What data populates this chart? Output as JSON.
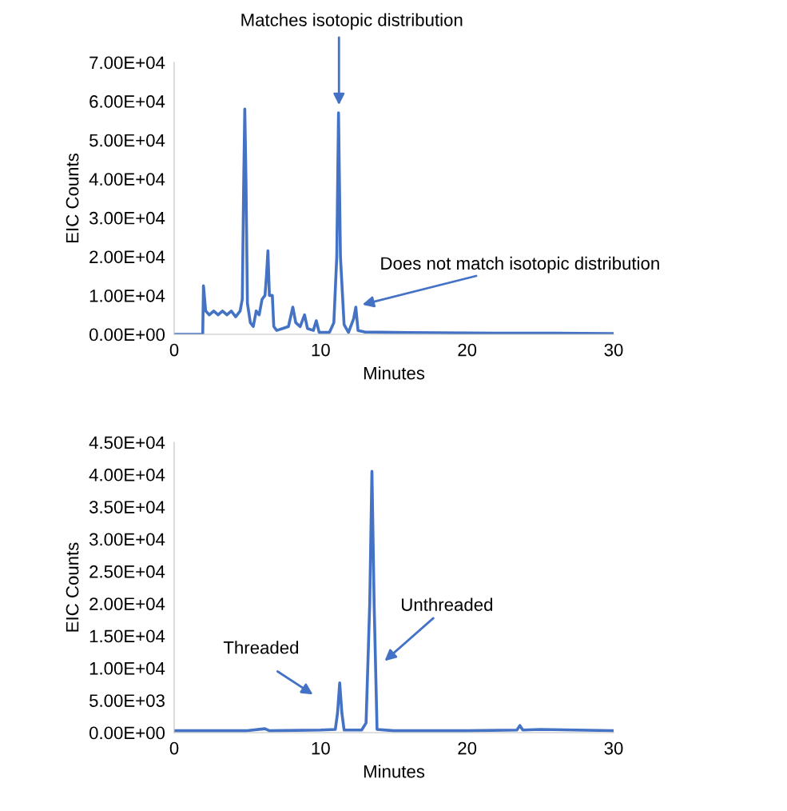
{
  "chart_data": [
    {
      "type": "line",
      "xlabel": "Minutes",
      "ylabel": "EIC Counts",
      "xlim": [
        0,
        30
      ],
      "xticks": [
        0,
        10,
        20,
        30
      ],
      "ylim": [
        0,
        70000
      ],
      "yticks": [
        {
          "value": 0,
          "label": "0.00E+00"
        },
        {
          "value": 10000,
          "label": "1.00E+04"
        },
        {
          "value": 20000,
          "label": "2.00E+04"
        },
        {
          "value": 30000,
          "label": "3.00E+04"
        },
        {
          "value": 40000,
          "label": "4.00E+04"
        },
        {
          "value": 50000,
          "label": "5.00E+04"
        },
        {
          "value": 60000,
          "label": "6.00E+04"
        },
        {
          "value": 70000,
          "label": "7.00E+04"
        }
      ],
      "grid": false,
      "legend": false,
      "series": [
        {
          "color": "#4472c4",
          "x": [
            0,
            1.95,
            2.0,
            2.15,
            2.4,
            2.7,
            3.0,
            3.3,
            3.6,
            3.9,
            4.2,
            4.5,
            4.65,
            4.75,
            4.82,
            4.9,
            5.0,
            5.2,
            5.4,
            5.6,
            5.8,
            6.0,
            6.2,
            6.3,
            6.4,
            6.5,
            6.7,
            6.8,
            7.0,
            7.4,
            7.8,
            8.1,
            8.3,
            8.6,
            8.9,
            9.1,
            9.5,
            9.7,
            9.9,
            10.6,
            10.9,
            11.1,
            11.22,
            11.35,
            11.6,
            11.9,
            12.25,
            12.4,
            12.55,
            13,
            15,
            18,
            22,
            26,
            30
          ],
          "values": [
            0,
            0,
            12500,
            6000,
            5000,
            6000,
            5000,
            6000,
            5000,
            6000,
            4500,
            6000,
            9000,
            40000,
            58000,
            40000,
            8000,
            3000,
            2000,
            6000,
            5000,
            9000,
            10000,
            15000,
            21500,
            10000,
            10000,
            2000,
            1000,
            1500,
            2000,
            7000,
            3000,
            2000,
            5000,
            1500,
            1000,
            3500,
            500,
            500,
            3000,
            20000,
            57000,
            20000,
            2500,
            500,
            4000,
            7000,
            1000,
            600,
            500,
            400,
            300,
            300,
            200
          ]
        }
      ],
      "annotations": [
        "Matches isotopic distribution",
        {
          "text": "Does not match isotopic distribution",
          "x": 12.7,
          "y": 7500
        }
      ]
    },
    {
      "type": "line",
      "xlabel": "Minutes",
      "ylabel": "EIC Counts",
      "xlim": [
        0,
        30
      ],
      "xticks": [
        0,
        10,
        20,
        30
      ],
      "ylim": [
        0,
        45000
      ],
      "yticks": [
        {
          "value": 0,
          "label": "0.00E+00"
        },
        {
          "value": 5000,
          "label": "5.00E+03"
        },
        {
          "value": 10000,
          "label": "1.00E+04"
        },
        {
          "value": 15000,
          "label": "1.50E+04"
        },
        {
          "value": 20000,
          "label": "2.00E+04"
        },
        {
          "value": 25000,
          "label": "2.50E+04"
        },
        {
          "value": 30000,
          "label": "3.00E+04"
        },
        {
          "value": 35000,
          "label": "3.50E+04"
        },
        {
          "value": 40000,
          "label": "4.00E+04"
        },
        {
          "value": 45000,
          "label": "4.50E+04"
        }
      ],
      "grid": false,
      "legend": false,
      "series": [
        {
          "color": "#4472c4",
          "x": [
            0,
            5,
            6.2,
            6.5,
            10,
            11.0,
            11.15,
            11.3,
            11.45,
            11.6,
            12.8,
            13.1,
            13.35,
            13.5,
            13.65,
            13.85,
            15,
            20,
            23.4,
            23.6,
            23.8,
            25,
            30
          ],
          "values": [
            300,
            300,
            600,
            300,
            400,
            500,
            3000,
            7700,
            3000,
            400,
            400,
            1500,
            20000,
            40500,
            20000,
            500,
            300,
            300,
            400,
            1100,
            400,
            500,
            300
          ]
        }
      ],
      "annotations": [
        "Threaded",
        {
          "text": "Unthreaded",
          "x": 13.65,
          "y": 20000
        }
      ]
    }
  ]
}
